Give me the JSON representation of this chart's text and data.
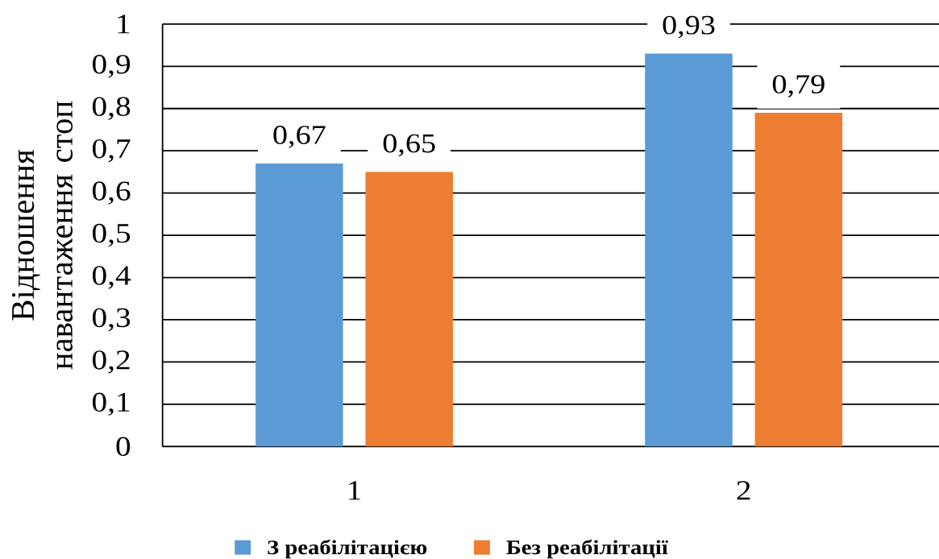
{
  "chart_data": {
    "type": "bar",
    "ylabel": "Відношення навантаження стоп",
    "categories": [
      "1",
      "2"
    ],
    "series": [
      {
        "name": "З реабілітацією",
        "color": "#5b9bd5",
        "values": [
          0.67,
          0.93
        ],
        "value_labels": [
          "0,67",
          "0,93"
        ]
      },
      {
        "name": "Без реабілітації",
        "color": "#ed7d31",
        "values": [
          0.65,
          0.79
        ],
        "value_labels": [
          "0,65",
          "0,79"
        ]
      }
    ],
    "ylim": [
      0,
      1
    ],
    "yticks": [
      0,
      {
        "value": 0.1,
        "label": "0,1"
      },
      {
        "value": 0.2,
        "label": "0,2"
      },
      {
        "value": 0.3,
        "label": "0,3"
      },
      {
        "value": 0.4,
        "label": "0,4"
      },
      {
        "value": 0.5,
        "label": "0,5"
      },
      {
        "value": 0.6,
        "label": "0,6"
      },
      {
        "value": 0.7,
        "label": "0,7"
      },
      {
        "value": 0.8,
        "label": "0,8"
      },
      {
        "value": 0.9,
        "label": "0,9"
      },
      1
    ],
    "grid": "y",
    "legend": "bottom"
  }
}
